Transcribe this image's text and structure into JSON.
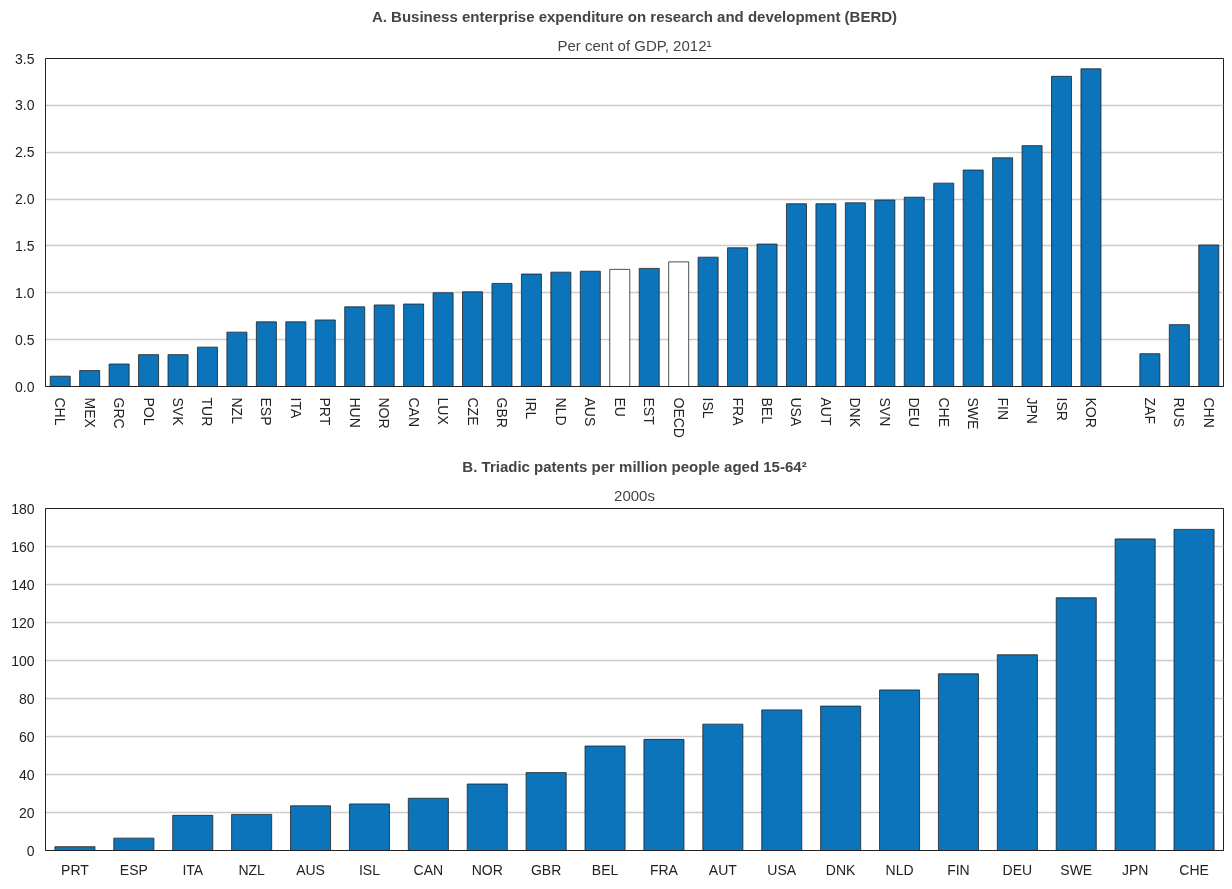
{
  "chart_data": [
    {
      "type": "bar",
      "title": "A. Business enterprise expenditure on research and development (BERD)",
      "subtitle": "Per cent of GDP, 2012¹",
      "categories": [
        "CHL",
        "MEX",
        "GRC",
        "POL",
        "SVK",
        "TUR",
        "NZL",
        "ESP",
        "ITA",
        "PRT",
        "HUN",
        "NOR",
        "CAN",
        "LUX",
        "CZE",
        "GBR",
        "IRL",
        "NLD",
        "AUS",
        "EU",
        "EST",
        "OECD",
        "ISL",
        "FRA",
        "BEL",
        "USA",
        "AUT",
        "DNK",
        "SVN",
        "DEU",
        "CHE",
        "SWE",
        "FIN",
        "JPN",
        "ISR",
        "KOR",
        null,
        "ZAF",
        "RUS",
        "CHN"
      ],
      "values": [
        0.11,
        0.17,
        0.24,
        0.34,
        0.34,
        0.42,
        0.58,
        0.69,
        0.69,
        0.71,
        0.85,
        0.87,
        0.88,
        1.0,
        1.01,
        1.1,
        1.2,
        1.22,
        1.23,
        1.25,
        1.26,
        1.33,
        1.38,
        1.48,
        1.52,
        1.95,
        1.95,
        1.96,
        1.99,
        2.02,
        2.17,
        2.31,
        2.44,
        2.57,
        3.31,
        3.39,
        null,
        0.35,
        0.66,
        1.51
      ],
      "colors": [
        "#0b74bb",
        "#0b74bb",
        "#0b74bb",
        "#0b74bb",
        "#0b74bb",
        "#0b74bb",
        "#0b74bb",
        "#0b74bb",
        "#0b74bb",
        "#0b74bb",
        "#0b74bb",
        "#0b74bb",
        "#0b74bb",
        "#0b74bb",
        "#0b74bb",
        "#0b74bb",
        "#0b74bb",
        "#0b74bb",
        "#0b74bb",
        "#ffffff",
        "#0b74bb",
        "#ffffff",
        "#0b74bb",
        "#0b74bb",
        "#0b74bb",
        "#0b74bb",
        "#0b74bb",
        "#0b74bb",
        "#0b74bb",
        "#0b74bb",
        "#0b74bb",
        "#0b74bb",
        "#0b74bb",
        "#0b74bb",
        "#0b74bb",
        "#0b74bb",
        "#0b74bb",
        "#0b74bb",
        "#0b74bb",
        "#0b74bb"
      ],
      "ylim": [
        0,
        3.5
      ],
      "yticks": [
        {
          "value": 0,
          "label": "0.0"
        },
        {
          "value": 0.5,
          "label": "0.5"
        },
        {
          "value": 1,
          "label": "1.0"
        },
        {
          "value": 1.5,
          "label": "1.5"
        },
        {
          "value": 2,
          "label": "2.0"
        },
        {
          "value": 2.5,
          "label": "2.5"
        },
        {
          "value": 3,
          "label": "3.0"
        },
        {
          "value": 3.5,
          "label": "3.5"
        }
      ],
      "grid": "y"
    },
    {
      "type": "bar",
      "title": "B. Triadic patents per million people aged 15-64²",
      "subtitle": "2000s",
      "categories": [
        "PRT",
        "ESP",
        "ITA",
        "NZL",
        "AUS",
        "ISL",
        "CAN",
        "NOR",
        "GBR",
        "BEL",
        "FRA",
        "AUT",
        "USA",
        "DNK",
        "NLD",
        "FIN",
        "DEU",
        "SWE",
        "JPN",
        "CHE"
      ],
      "values": [
        2,
        6.5,
        18.5,
        19,
        23.5,
        24.5,
        27.5,
        35,
        41,
        55,
        58.5,
        66.5,
        74,
        76,
        84.5,
        93,
        103,
        133,
        164,
        169
      ],
      "color": "#0b74bb",
      "ylim": [
        0,
        180
      ],
      "yticks": [
        0,
        20,
        40,
        60,
        80,
        100,
        120,
        140,
        160,
        180
      ],
      "grid": "y"
    }
  ]
}
